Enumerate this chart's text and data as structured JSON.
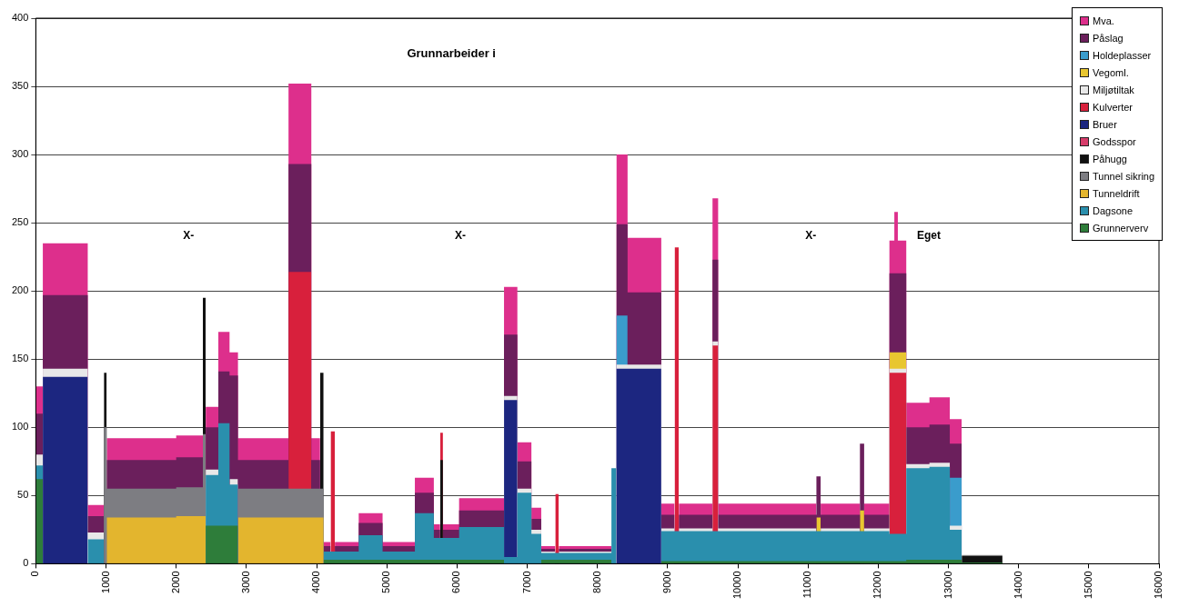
{
  "chart_data": {
    "type": "area",
    "stacked": true,
    "title": "Grunnarbeider i",
    "annotations": [
      "X-",
      "X-",
      "X-",
      "Eget"
    ],
    "x": [
      0,
      100,
      100,
      740,
      740,
      970,
      970,
      1010,
      1010,
      2000,
      2000,
      2380,
      2380,
      2420,
      2420,
      2600,
      2600,
      2760,
      2760,
      2880,
      2880,
      3600,
      3600,
      3925,
      3925,
      4050,
      4050,
      4100,
      4100,
      4200,
      4200,
      4260,
      4260,
      4600,
      4600,
      4940,
      4940,
      5400,
      5400,
      5670,
      5670,
      5760,
      5760,
      5800,
      5800,
      6030,
      6030,
      6670,
      6670,
      6860,
      6860,
      7060,
      7060,
      7200,
      7200,
      7400,
      7400,
      7450,
      7450,
      8200,
      8200,
      8270,
      8270,
      8430,
      8430,
      8910,
      8910,
      9100,
      9100,
      9160,
      9160,
      9640,
      9640,
      9720,
      9720,
      11120,
      11120,
      11180,
      11180,
      11740,
      11740,
      11800,
      11800,
      12160,
      12160,
      12230,
      12230,
      12280,
      12280,
      12400,
      12400,
      12730,
      12730,
      13020,
      13020,
      13190,
      13190,
      13770
    ],
    "xlim": [
      0,
      16000
    ],
    "xticks": [
      0,
      1000,
      2000,
      3000,
      4000,
      5000,
      6000,
      7000,
      8000,
      9000,
      10000,
      11000,
      12000,
      13000,
      14000,
      15000,
      16000
    ],
    "ylim": [
      0,
      400
    ],
    "yticks": [
      0,
      50,
      100,
      150,
      200,
      250,
      300,
      350,
      400
    ],
    "grid": "y",
    "legend": "top right",
    "series": [
      {
        "name": "Grunnerverv",
        "color": "#2e7d3a",
        "values": [
          62,
          62,
          null,
          null,
          null,
          null,
          null,
          null,
          null,
          null,
          null,
          null,
          null,
          null,
          28,
          28,
          28,
          28,
          28,
          28,
          null,
          null,
          null,
          null,
          null,
          null,
          null,
          null,
          3,
          3,
          3,
          3,
          3,
          3,
          3,
          3,
          3,
          3,
          3,
          3,
          3,
          3,
          3,
          3,
          3,
          3,
          3,
          3,
          null,
          null,
          null,
          null,
          null,
          null,
          3,
          3,
          3,
          3,
          3,
          3,
          null,
          null,
          null,
          null,
          null,
          null,
          2,
          2,
          2,
          2,
          2,
          2,
          2,
          2,
          2,
          2,
          2,
          2,
          2,
          2,
          2,
          2,
          2,
          2,
          2,
          2,
          2,
          2,
          2,
          2,
          3,
          3,
          3,
          3,
          3,
          3,
          1,
          1
        ]
      },
      {
        "name": "Dagsone",
        "color": "#2a8fad",
        "values": [
          10,
          10,
          null,
          null,
          18,
          18,
          null,
          null,
          null,
          null,
          null,
          null,
          null,
          null,
          37,
          37,
          75,
          75,
          30,
          30,
          null,
          null,
          null,
          null,
          null,
          null,
          null,
          null,
          6,
          6,
          6,
          6,
          6,
          6,
          18,
          18,
          6,
          6,
          34,
          34,
          16,
          16,
          16,
          16,
          16,
          16,
          24,
          24,
          5,
          5,
          52,
          52,
          22,
          22,
          5,
          5,
          5,
          5,
          5,
          5,
          70,
          70,
          null,
          null,
          null,
          null,
          22,
          22,
          22,
          22,
          22,
          22,
          22,
          22,
          22,
          22,
          22,
          22,
          22,
          22,
          22,
          22,
          22,
          22,
          20,
          20,
          20,
          20,
          20,
          20,
          67,
          67,
          68,
          68,
          22,
          22,
          null,
          null
        ]
      },
      {
        "name": "Tunneldrift",
        "color": "#e3b52e",
        "values": [
          null,
          null,
          null,
          null,
          null,
          null,
          null,
          null,
          34,
          34,
          35,
          35,
          35,
          35,
          null,
          null,
          null,
          null,
          null,
          null,
          34,
          34,
          34,
          34,
          34,
          34,
          34,
          34,
          null,
          null,
          null,
          null,
          null,
          null,
          null,
          null,
          null,
          null,
          null,
          null,
          null,
          null,
          null,
          null,
          null,
          null,
          null,
          null,
          null,
          null,
          null,
          null,
          null,
          null,
          null,
          null,
          null,
          null,
          null,
          null,
          null,
          null,
          null,
          null,
          null,
          null,
          null,
          null,
          null,
          null,
          null,
          null,
          null,
          null,
          null,
          null,
          null,
          null,
          null,
          null,
          null,
          null,
          null,
          null,
          null,
          null,
          null,
          null,
          null,
          null,
          null,
          null,
          null,
          null,
          null,
          null,
          null,
          null
        ]
      },
      {
        "name": "Tunnel sikring",
        "color": "#7d7d82",
        "values": [
          null,
          null,
          null,
          null,
          null,
          null,
          100,
          100,
          21,
          21,
          21,
          21,
          60,
          60,
          null,
          null,
          null,
          null,
          null,
          null,
          21,
          21,
          21,
          21,
          21,
          21,
          21,
          21,
          null,
          null,
          null,
          null,
          null,
          null,
          null,
          null,
          null,
          null,
          null,
          null,
          null,
          null,
          null,
          null,
          null,
          null,
          null,
          null,
          null,
          null,
          null,
          null,
          null,
          null,
          null,
          null,
          null,
          null,
          null,
          null,
          null,
          null,
          null,
          null,
          null,
          null,
          null,
          null,
          null,
          null,
          null,
          null,
          null,
          null,
          null,
          null,
          null,
          null,
          null,
          null,
          null,
          null,
          null,
          null,
          null,
          null,
          null,
          null,
          null,
          null,
          null,
          null,
          null,
          null,
          null,
          null,
          null,
          null
        ]
      },
      {
        "name": "Påhugg",
        "color": "#111111",
        "values": [
          null,
          null,
          null,
          null,
          null,
          null,
          40,
          40,
          null,
          null,
          null,
          null,
          100,
          100,
          null,
          null,
          null,
          null,
          null,
          null,
          null,
          null,
          null,
          null,
          null,
          null,
          85,
          85,
          null,
          null,
          null,
          null,
          null,
          null,
          null,
          null,
          null,
          null,
          null,
          null,
          null,
          null,
          57,
          57,
          null,
          null,
          null,
          null,
          null,
          null,
          null,
          null,
          null,
          null,
          null,
          null,
          null,
          null,
          null,
          null,
          null,
          null,
          null,
          null,
          null,
          null,
          null,
          null,
          null,
          null,
          null,
          null,
          null,
          null,
          null,
          null,
          null,
          null,
          null,
          null,
          null,
          null,
          null,
          null,
          null,
          null,
          null,
          null,
          null,
          null,
          null,
          null,
          null,
          null,
          null,
          null,
          5,
          5
        ]
      },
      {
        "name": "Godsspor",
        "color": "#d63c6a",
        "values": [
          null,
          null,
          null,
          null,
          null,
          null,
          null,
          null,
          null,
          null,
          null,
          null,
          null,
          null,
          null,
          null,
          null,
          null,
          null,
          null,
          null,
          null,
          null,
          null,
          null,
          null,
          null,
          null,
          null,
          null,
          null,
          null,
          null,
          null,
          null,
          null,
          null,
          null,
          null,
          null,
          null,
          null,
          null,
          null,
          null,
          null,
          null,
          null,
          null,
          null,
          null,
          null,
          null,
          null,
          null,
          null,
          null,
          null,
          null,
          null,
          null,
          null,
          null,
          null,
          null,
          null,
          null,
          null,
          null,
          null,
          null,
          null,
          null,
          null,
          null,
          null,
          null,
          null,
          null,
          null,
          null,
          null,
          null,
          null,
          null,
          null,
          null,
          null,
          null,
          null,
          null,
          null,
          null,
          null,
          null,
          null,
          null,
          null
        ]
      },
      {
        "name": "Bruer",
        "color": "#1c2680",
        "values": [
          null,
          null,
          137,
          137,
          null,
          null,
          null,
          null,
          null,
          null,
          null,
          null,
          null,
          null,
          null,
          null,
          null,
          null,
          null,
          null,
          null,
          null,
          null,
          null,
          null,
          null,
          null,
          null,
          null,
          null,
          null,
          null,
          null,
          null,
          null,
          null,
          null,
          null,
          null,
          null,
          null,
          null,
          null,
          null,
          null,
          null,
          null,
          null,
          115,
          115,
          null,
          null,
          null,
          null,
          null,
          null,
          null,
          null,
          null,
          null,
          null,
          null,
          143,
          143,
          143,
          143,
          null,
          null,
          null,
          null,
          null,
          null,
          null,
          null,
          null,
          null,
          null,
          null,
          null,
          null,
          null,
          null,
          null,
          null,
          null,
          null,
          null,
          null,
          null,
          null,
          null,
          null,
          null,
          null,
          null,
          null,
          null,
          null
        ]
      },
      {
        "name": "Kulverter",
        "color": "#d8203c",
        "values": [
          null,
          null,
          null,
          null,
          null,
          null,
          null,
          null,
          null,
          null,
          null,
          null,
          null,
          null,
          null,
          null,
          null,
          null,
          null,
          null,
          null,
          null,
          159,
          159,
          null,
          null,
          null,
          null,
          null,
          null,
          88,
          88,
          null,
          null,
          null,
          null,
          null,
          null,
          null,
          null,
          null,
          null,
          20,
          20,
          null,
          null,
          null,
          null,
          null,
          null,
          null,
          null,
          null,
          null,
          null,
          null,
          43,
          43,
          null,
          null,
          null,
          null,
          null,
          null,
          null,
          null,
          null,
          null,
          208,
          208,
          null,
          null,
          136,
          136,
          null,
          null,
          null,
          null,
          null,
          null,
          null,
          null,
          null,
          null,
          118,
          118,
          118,
          118,
          118,
          118,
          null,
          null,
          null,
          null,
          null,
          null,
          null,
          null
        ]
      },
      {
        "name": "Miljøtiltak",
        "color": "#e8e8e8",
        "values": [
          8,
          8,
          6,
          6,
          5,
          5,
          null,
          null,
          null,
          null,
          null,
          null,
          null,
          null,
          4,
          4,
          null,
          null,
          4,
          4,
          null,
          null,
          null,
          null,
          null,
          null,
          null,
          null,
          null,
          null,
          null,
          null,
          null,
          null,
          null,
          null,
          null,
          null,
          null,
          null,
          null,
          null,
          null,
          null,
          null,
          null,
          null,
          null,
          3,
          3,
          3,
          3,
          3,
          3,
          1,
          1,
          null,
          null,
          1,
          1,
          null,
          null,
          3,
          3,
          3,
          3,
          2,
          2,
          null,
          null,
          2,
          2,
          3,
          3,
          2,
          2,
          null,
          null,
          2,
          2,
          null,
          null,
          2,
          2,
          3,
          3,
          3,
          3,
          3,
          3,
          3,
          3,
          3,
          3,
          3,
          3,
          1,
          1
        ]
      },
      {
        "name": "Vegoml.",
        "color": "#e8c630",
        "values": [
          null,
          null,
          null,
          null,
          null,
          null,
          null,
          null,
          null,
          null,
          null,
          null,
          null,
          null,
          null,
          null,
          null,
          null,
          null,
          null,
          null,
          null,
          null,
          null,
          null,
          null,
          null,
          null,
          null,
          null,
          null,
          null,
          null,
          null,
          null,
          null,
          null,
          null,
          null,
          null,
          null,
          null,
          null,
          null,
          null,
          null,
          null,
          null,
          null,
          null,
          null,
          null,
          null,
          null,
          null,
          null,
          null,
          null,
          null,
          null,
          null,
          null,
          null,
          null,
          null,
          null,
          null,
          null,
          null,
          null,
          null,
          null,
          null,
          null,
          null,
          null,
          10,
          10,
          null,
          null,
          15,
          15,
          null,
          null,
          12,
          12,
          12,
          12,
          12,
          12,
          null,
          null,
          null,
          null,
          null,
          null,
          null,
          null
        ]
      },
      {
        "name": "Holdeplasser",
        "color": "#3a9ccc",
        "values": [
          null,
          null,
          null,
          null,
          null,
          null,
          null,
          null,
          null,
          null,
          null,
          null,
          null,
          null,
          null,
          null,
          null,
          null,
          null,
          null,
          null,
          null,
          null,
          null,
          null,
          null,
          null,
          null,
          null,
          null,
          null,
          null,
          null,
          null,
          null,
          null,
          null,
          null,
          null,
          null,
          null,
          null,
          null,
          null,
          null,
          null,
          null,
          null,
          null,
          null,
          null,
          null,
          null,
          null,
          null,
          null,
          null,
          null,
          null,
          null,
          null,
          null,
          36,
          36,
          null,
          null,
          null,
          null,
          null,
          null,
          null,
          null,
          null,
          null,
          null,
          null,
          null,
          null,
          null,
          null,
          null,
          null,
          null,
          null,
          null,
          null,
          null,
          null,
          null,
          null,
          null,
          null,
          null,
          null,
          35,
          35,
          null,
          null
        ]
      },
      {
        "name": "Påslag",
        "color": "#6b1f5c",
        "values": [
          30,
          30,
          54,
          54,
          12,
          12,
          null,
          null,
          21,
          21,
          22,
          22,
          null,
          null,
          31,
          31,
          38,
          38,
          76,
          76,
          21,
          21,
          79,
          79,
          21,
          21,
          null,
          null,
          4,
          4,
          null,
          null,
          4,
          4,
          9,
          9,
          4,
          4,
          15,
          15,
          6,
          6,
          null,
          null,
          6,
          6,
          12,
          12,
          45,
          45,
          20,
          20,
          8,
          8,
          2,
          2,
          null,
          null,
          2,
          2,
          null,
          null,
          67,
          67,
          53,
          53,
          10,
          10,
          null,
          null,
          10,
          10,
          60,
          60,
          10,
          10,
          30,
          30,
          10,
          10,
          49,
          49,
          10,
          10,
          58,
          58,
          58,
          58,
          58,
          58,
          27,
          27,
          28,
          28,
          25,
          25,
          null,
          null
        ]
      },
      {
        "name": "Mva.",
        "color": "#dd2f8c",
        "values": [
          20,
          20,
          38,
          38,
          8,
          8,
          null,
          null,
          16,
          16,
          16,
          16,
          null,
          null,
          15,
          15,
          29,
          29,
          17,
          17,
          16,
          16,
          59,
          59,
          16,
          16,
          null,
          null,
          3,
          3,
          null,
          null,
          3,
          3,
          7,
          7,
          3,
          3,
          11,
          11,
          4,
          4,
          null,
          null,
          4,
          4,
          9,
          9,
          35,
          35,
          14,
          14,
          8,
          8,
          2,
          2,
          null,
          null,
          2,
          2,
          null,
          null,
          51,
          51,
          40,
          40,
          8,
          8,
          null,
          null,
          8,
          8,
          45,
          45,
          8,
          8,
          null,
          null,
          8,
          8,
          null,
          null,
          8,
          8,
          24,
          24,
          45,
          45,
          24,
          24,
          18,
          18,
          20,
          20,
          18,
          18,
          null,
          null
        ]
      }
    ]
  }
}
